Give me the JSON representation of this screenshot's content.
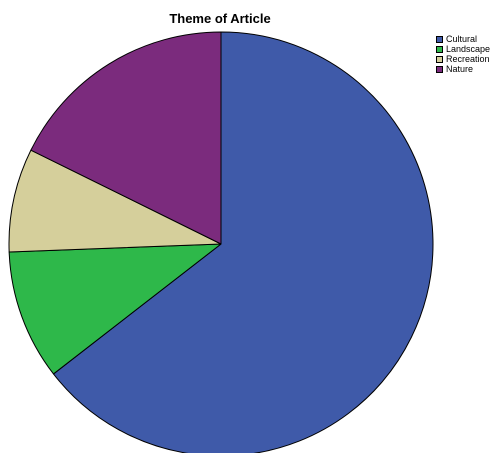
{
  "chart_data": {
    "type": "pie",
    "title": "Theme of Article",
    "categories": [
      "Cultural",
      "Landscape",
      "Recreation",
      "Nature"
    ],
    "values": [
      64.5,
      9.9,
      7.9,
      17.7
    ],
    "colors": [
      "#3f5aa9",
      "#2eb84a",
      "#d5cf9b",
      "#7b2b7d"
    ],
    "start_angle_deg": 0,
    "direction": "clockwise",
    "legend": "top-right"
  }
}
